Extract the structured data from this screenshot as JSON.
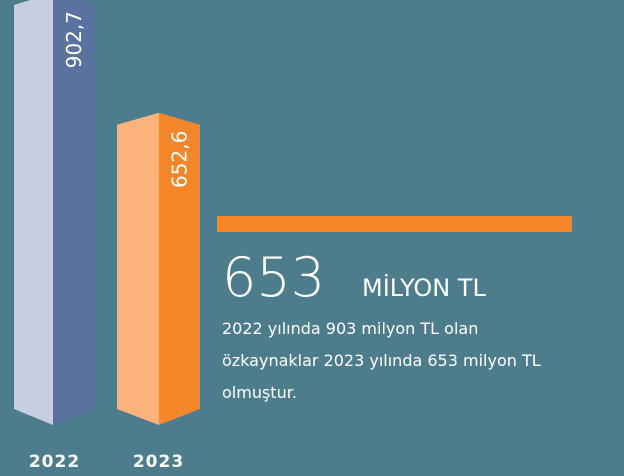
{
  "chart_data": {
    "type": "bar",
    "categories": [
      "2022",
      "2023"
    ],
    "values": [
      902.7,
      652.6
    ],
    "value_labels": [
      "902,7",
      "652,6"
    ],
    "colors": [
      [
        "#c6cee0",
        "#5a72a0"
      ],
      [
        "#fdb47a",
        "#f5872a"
      ]
    ]
  },
  "highlight": {
    "number": "653",
    "unit": "MİLYON TL",
    "text": [
      "2022 yılında 903 milyon TL olan",
      "özkaynaklar 2023 yılında 653 milyon TL",
      "olmuştur."
    ]
  }
}
